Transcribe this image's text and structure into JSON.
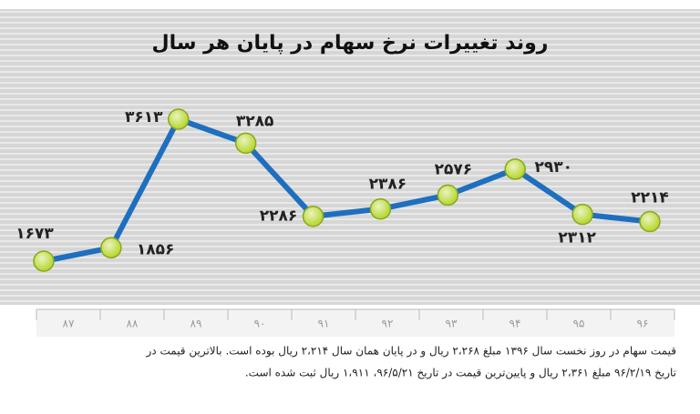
{
  "chart_data": {
    "type": "line",
    "title": "روند تغییرات نرخ سهام در پایان هر سال",
    "categories": [
      "۸۷",
      "۸۸",
      "۸۹",
      "۹۰",
      "۹۱",
      "۹۲",
      "۹۳",
      "۹۴",
      "۹۵",
      "۹۶"
    ],
    "values": [
      1673,
      1856,
      3613,
      3285,
      2286,
      2386,
      2576,
      2930,
      2312,
      2214
    ],
    "value_labels": [
      "۱۶۷۳",
      "۱۸۵۶",
      "۳۶۱۳",
      "۳۲۸۵",
      "۲۲۸۶",
      "۲۳۸۶",
      "۲۵۷۶",
      "۲۹۳۰",
      "۲۳۱۲",
      "۲۲۱۴"
    ],
    "color": "#1e6fbf",
    "marker_color": "#b8d832",
    "notes": [
      "قیمت سهام در روز نخست سال ۱۳۹۶ مبلغ ۲،۲۶۸ ریال و در پایان همان سال ۲،۲۱۴ ریال بوده است. بالاترین قیمت در",
      "تاریخ ۹۶/۲/۱۹ مبلغ ۲،۳۶۱ ریال و پایین‌ترین قیمت در تاریخ ۹۶/۵/۲۱، ۱،۹۱۱ ریال ثبت شده است."
    ]
  }
}
